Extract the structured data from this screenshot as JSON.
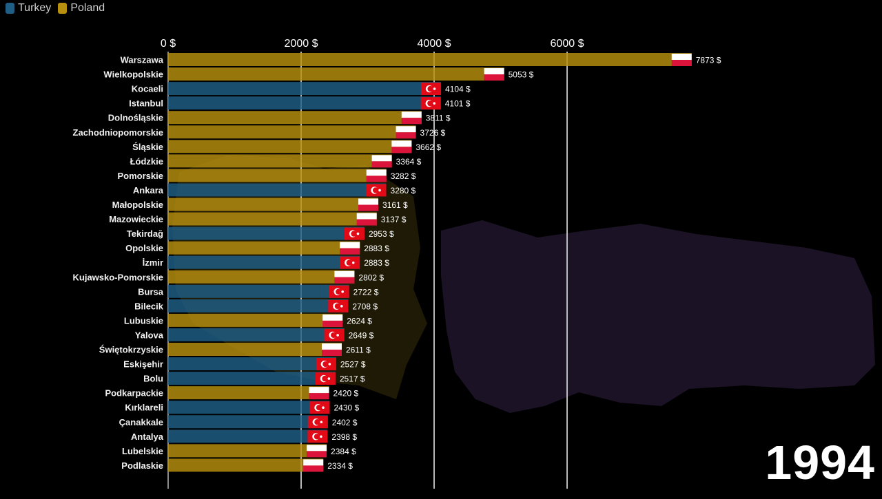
{
  "legend": [
    {
      "label": "Turkey",
      "color": "#1f5f86"
    },
    {
      "label": "Poland",
      "color": "#b8900f"
    }
  ],
  "year": "1994",
  "chart_data": {
    "type": "bar",
    "orientation": "horizontal",
    "title": "",
    "xlabel": "",
    "ylabel": "",
    "xlim": [
      0,
      8000
    ],
    "x_ticks": [
      "0 $",
      "2000 $",
      "4000 $",
      "6000 $"
    ],
    "x_tick_values": [
      0,
      2000,
      4000,
      6000
    ],
    "value_suffix": " $",
    "categories": [
      "Warszawa",
      "Wielkopolskie",
      "Kocaeli",
      "Istanbul",
      "Dolnośląskie",
      "Zachodniopomorskie",
      "Śląskie",
      "Łódzkie",
      "Pomorskie",
      "Ankara",
      "Małopolskie",
      "Mazowieckie",
      "Tekirdağ",
      "Opolskie",
      "İzmir",
      "Kujawsko-Pomorskie",
      "Bursa",
      "Bilecik",
      "Lubuskie",
      "Yalova",
      "Świętokrzyskie",
      "Eskişehir",
      "Bolu",
      "Podkarpackie",
      "Kırklareli",
      "Çanakkale",
      "Antalya",
      "Lubelskie",
      "Podlaskie"
    ],
    "values": [
      7873,
      5053,
      4104,
      4101,
      3811,
      3726,
      3662,
      3364,
      3282,
      3280,
      3161,
      3137,
      2953,
      2883,
      2883,
      2802,
      2722,
      2708,
      2624,
      2649,
      2611,
      2527,
      2517,
      2420,
      2430,
      2402,
      2398,
      2384,
      2334
    ],
    "countries": [
      "Poland",
      "Poland",
      "Turkey",
      "Turkey",
      "Poland",
      "Poland",
      "Poland",
      "Poland",
      "Poland",
      "Turkey",
      "Poland",
      "Poland",
      "Turkey",
      "Poland",
      "Turkey",
      "Poland",
      "Turkey",
      "Turkey",
      "Poland",
      "Turkey",
      "Poland",
      "Turkey",
      "Turkey",
      "Poland",
      "Turkey",
      "Turkey",
      "Turkey",
      "Poland",
      "Poland"
    ]
  }
}
